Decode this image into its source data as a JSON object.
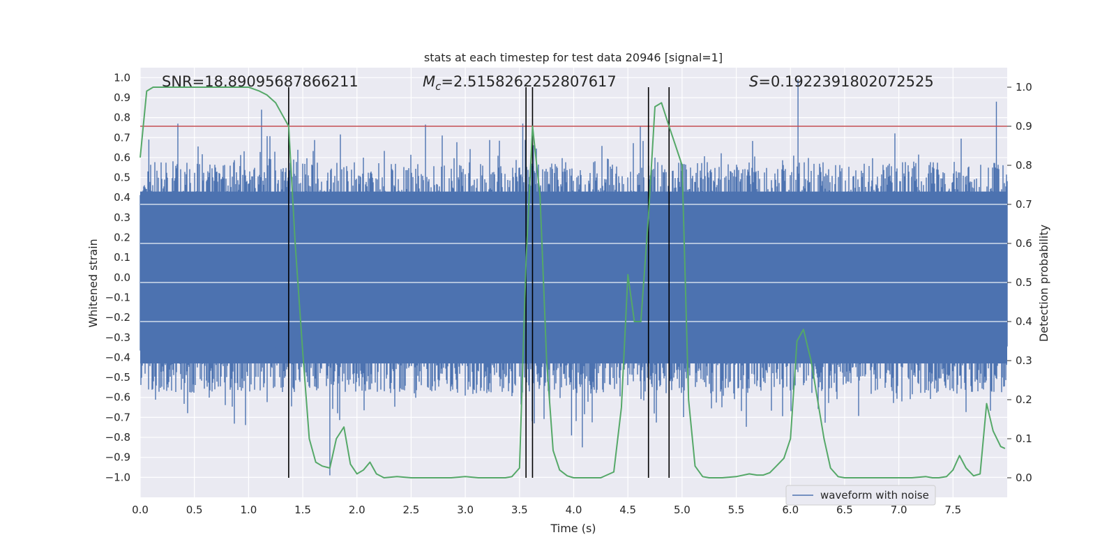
{
  "chart_data": {
    "type": "line",
    "title": "stats at each timestep for test data 20946 [signal=1]",
    "xlabel": "Time (s)",
    "ylabel": "Whitened strain",
    "y2label": "Detection probability",
    "xlim": [
      0.0,
      8.0
    ],
    "ylim": [
      -1.1,
      1.05
    ],
    "y2lim": [
      -0.05,
      1.05
    ],
    "x_ticks": [
      "0.0",
      "0.5",
      "1.0",
      "1.5",
      "2.0",
      "2.5",
      "3.0",
      "3.5",
      "4.0",
      "4.5",
      "5.0",
      "5.5",
      "6.0",
      "6.5",
      "7.0",
      "7.5"
    ],
    "y_ticks": [
      "1.0",
      "0.9",
      "0.8",
      "0.7",
      "0.6",
      "0.5",
      "0.4",
      "0.3",
      "0.2",
      "0.1",
      "0.0",
      "−0.1",
      "−0.2",
      "−0.3",
      "−0.4",
      "−0.5",
      "−0.6",
      "−0.7",
      "−0.8",
      "−0.9",
      "−1.0"
    ],
    "y2_ticks": [
      "1.0",
      "0.9",
      "0.8",
      "0.7",
      "0.6",
      "0.5",
      "0.4",
      "0.3",
      "0.2",
      "0.1",
      "0.0"
    ],
    "annotations": {
      "snr": "SNR=18.89095687866211",
      "mc_symbol": "M",
      "mc_sub": "c",
      "mc_value": "=2.5158262252807617",
      "s_symbol": "S",
      "s_value": "=0.1922391802072525"
    },
    "legend": {
      "label": "waveform with noise",
      "position": "lower-right"
    },
    "threshold": {
      "value": 0.9,
      "axis": "right",
      "color": "#c44e52"
    },
    "vertical_lines": [
      1.37,
      3.56,
      3.62,
      4.69,
      4.88
    ],
    "series": [
      {
        "name": "waveform with noise",
        "axis": "left",
        "color": "#4c72b0",
        "core_amplitude": 0.43,
        "notable_peaks": [
          [
            1.12,
            0.84
          ],
          [
            1.75,
            -0.99
          ],
          [
            4.08,
            -0.85
          ],
          [
            6.07,
            0.99
          ],
          [
            6.03,
            0.61
          ],
          [
            7.9,
            0.88
          ],
          [
            3.53,
            0.77
          ],
          [
            3.98,
            -0.79
          ],
          [
            0.08,
            0.69
          ]
        ]
      },
      {
        "name": "",
        "axis": "right",
        "color": "#55a868",
        "x": [
          0.0,
          0.06,
          0.12,
          0.2,
          0.3,
          0.5,
          0.8,
          1.0,
          1.1,
          1.17,
          1.25,
          1.31,
          1.37,
          1.43,
          1.5,
          1.56,
          1.62,
          1.68,
          1.75,
          1.81,
          1.88,
          1.94,
          2.0,
          2.06,
          2.12,
          2.18,
          2.25,
          2.37,
          2.5,
          2.62,
          2.75,
          2.87,
          3.0,
          3.12,
          3.25,
          3.37,
          3.43,
          3.5,
          3.56,
          3.62,
          3.69,
          3.75,
          3.81,
          3.87,
          3.94,
          4.0,
          4.12,
          4.25,
          4.37,
          4.44,
          4.5,
          4.56,
          4.62,
          4.69,
          4.75,
          4.81,
          4.88,
          4.94,
          5.0,
          5.06,
          5.12,
          5.19,
          5.25,
          5.37,
          5.5,
          5.62,
          5.69,
          5.75,
          5.81,
          5.87,
          5.94,
          6.0,
          6.06,
          6.12,
          6.19,
          6.25,
          6.31,
          6.37,
          6.44,
          6.5,
          6.62,
          6.75,
          6.87,
          7.0,
          7.12,
          7.25,
          7.31,
          7.37,
          7.44,
          7.5,
          7.56,
          7.62,
          7.69,
          7.75,
          7.81,
          7.87,
          7.94,
          7.98
        ],
        "y": [
          0.82,
          0.99,
          1.0,
          1.0,
          1.0,
          1.0,
          1.0,
          1.0,
          0.99,
          0.98,
          0.96,
          0.93,
          0.9,
          0.6,
          0.32,
          0.1,
          0.04,
          0.03,
          0.025,
          0.1,
          0.13,
          0.035,
          0.01,
          0.02,
          0.04,
          0.01,
          0.0,
          0.003,
          0.0,
          0.0,
          0.0,
          0.0,
          0.003,
          0.0,
          0.0,
          0.0,
          0.003,
          0.025,
          0.55,
          0.9,
          0.72,
          0.3,
          0.07,
          0.02,
          0.005,
          0.0,
          0.0,
          0.0,
          0.015,
          0.18,
          0.52,
          0.4,
          0.4,
          0.67,
          0.95,
          0.96,
          0.9,
          0.85,
          0.8,
          0.2,
          0.03,
          0.003,
          0.0,
          0.0,
          0.003,
          0.01,
          0.007,
          0.007,
          0.013,
          0.03,
          0.05,
          0.1,
          0.35,
          0.38,
          0.3,
          0.2,
          0.1,
          0.025,
          0.003,
          0.0,
          0.0,
          0.0,
          0.0,
          0.0,
          0.0,
          0.003,
          0.0,
          0.0,
          0.003,
          0.02,
          0.057,
          0.025,
          0.005,
          0.01,
          0.19,
          0.12,
          0.08,
          0.075
        ]
      }
    ]
  }
}
